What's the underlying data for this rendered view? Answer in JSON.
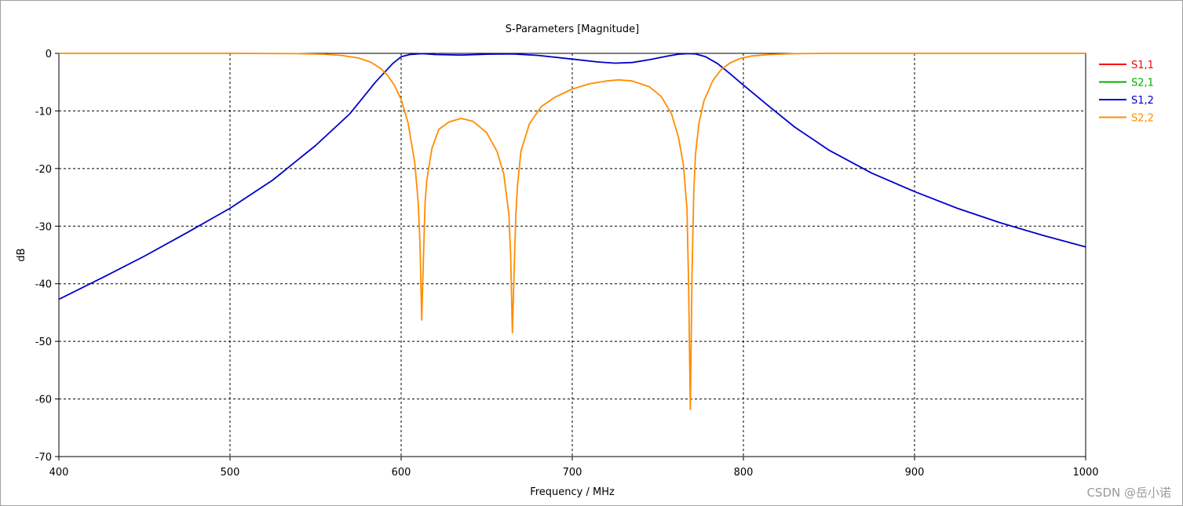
{
  "chart_data": {
    "type": "line",
    "title": "S-Parameters [Magnitude]",
    "xlabel": "Frequency / MHz",
    "ylabel": "dB",
    "xlim": [
      400,
      1000
    ],
    "ylim": [
      -70,
      0
    ],
    "xticks": [
      400,
      500,
      600,
      700,
      800,
      900,
      1000
    ],
    "yticks": [
      0,
      -10,
      -20,
      -30,
      -40,
      -50,
      -60,
      -70
    ],
    "grid": true,
    "legend_position": "right",
    "series": [
      {
        "name": "S1,1",
        "color": "#ff0000",
        "x": [],
        "y": []
      },
      {
        "name": "S2,1",
        "color": "#00b000",
        "x": [],
        "y": []
      },
      {
        "name": "S1,2",
        "color": "#0000c8",
        "x": [
          400,
          425,
          450,
          475,
          500,
          525,
          550,
          570,
          585,
          595,
          600,
          605,
          612,
          620,
          635,
          650,
          665,
          680,
          700,
          715,
          725,
          735,
          745,
          755,
          762,
          768,
          772,
          778,
          785,
          792,
          800,
          815,
          830,
          850,
          875,
          900,
          925,
          950,
          975,
          1000
        ],
        "y": [
          -42.7,
          -39.0,
          -35.2,
          -31.1,
          -26.9,
          -22.0,
          -16.0,
          -10.5,
          -5.0,
          -1.8,
          -0.6,
          -0.2,
          -0.05,
          -0.2,
          -0.3,
          -0.15,
          -0.1,
          -0.35,
          -1.0,
          -1.5,
          -1.7,
          -1.6,
          -1.1,
          -0.5,
          -0.15,
          -0.05,
          -0.1,
          -0.6,
          -1.8,
          -3.5,
          -5.5,
          -9.2,
          -12.8,
          -16.8,
          -20.8,
          -24.0,
          -26.9,
          -29.4,
          -31.6,
          -33.6
        ]
      },
      {
        "name": "S2,2",
        "color": "#ff8c00",
        "x": [
          400,
          500,
          540,
          555,
          565,
          575,
          582,
          588,
          592,
          596,
          600,
          604,
          608,
          610,
          611,
          612,
          613,
          614,
          615,
          618,
          622,
          628,
          635,
          642,
          650,
          656,
          660,
          663,
          664,
          665,
          666,
          667,
          668,
          670,
          675,
          682,
          690,
          700,
          710,
          720,
          727,
          735,
          745,
          752,
          758,
          762,
          765,
          767,
          768,
          769,
          770,
          771,
          772,
          774,
          777,
          782,
          787,
          792,
          798,
          805,
          815,
          830,
          850,
          900,
          1000
        ],
        "y": [
          0,
          0,
          -0.05,
          -0.15,
          -0.35,
          -0.8,
          -1.5,
          -2.6,
          -3.8,
          -5.5,
          -8.0,
          -12.0,
          -19.0,
          -26.0,
          -33.0,
          -46.3,
          -36.0,
          -26.0,
          -22.0,
          -16.5,
          -13.2,
          -11.9,
          -11.3,
          -11.8,
          -13.8,
          -17.0,
          -21.0,
          -28.0,
          -35.0,
          -48.5,
          -38.0,
          -28.0,
          -23.0,
          -17.0,
          -12.2,
          -9.2,
          -7.6,
          -6.2,
          -5.3,
          -4.8,
          -4.6,
          -4.8,
          -5.8,
          -7.5,
          -10.5,
          -14.5,
          -19.5,
          -27.0,
          -40.0,
          -61.8,
          -38.0,
          -24.0,
          -17.5,
          -12.2,
          -8.2,
          -4.8,
          -2.8,
          -1.7,
          -0.9,
          -0.45,
          -0.2,
          -0.05,
          0,
          0,
          0
        ]
      }
    ]
  },
  "footer": {
    "watermark": "CSDN @岳小诺"
  }
}
